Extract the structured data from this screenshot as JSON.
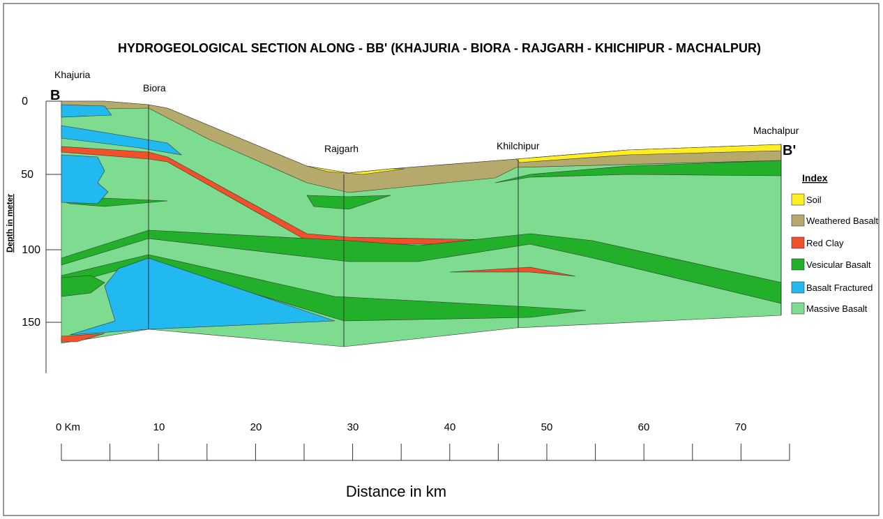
{
  "title": "HYDROGEOLOGICAL SECTION ALONG - BB' (KHAJURIA - BIORA - RAJGARH - KHICHIPUR - MACHALPUR)",
  "section_start": "B",
  "section_end": "B'",
  "places": [
    "Khajuria",
    "Biora",
    "Rajgarh",
    "Khilchipur",
    "Machalpur"
  ],
  "y_axis": {
    "label": "Depth in meter",
    "ticks": [
      "0",
      "50",
      "100",
      "150"
    ]
  },
  "x_axis": {
    "label": "Distance in km",
    "ticks": [
      "0 Km",
      "10",
      "20",
      "30",
      "40",
      "50",
      "60",
      "70"
    ]
  },
  "index": {
    "title": "Index",
    "items": [
      "Soil",
      "Weathered Basalt",
      "Red Clay",
      "Vesicular Basalt",
      "Basalt Fractured",
      "Massive Basalt"
    ]
  }
}
